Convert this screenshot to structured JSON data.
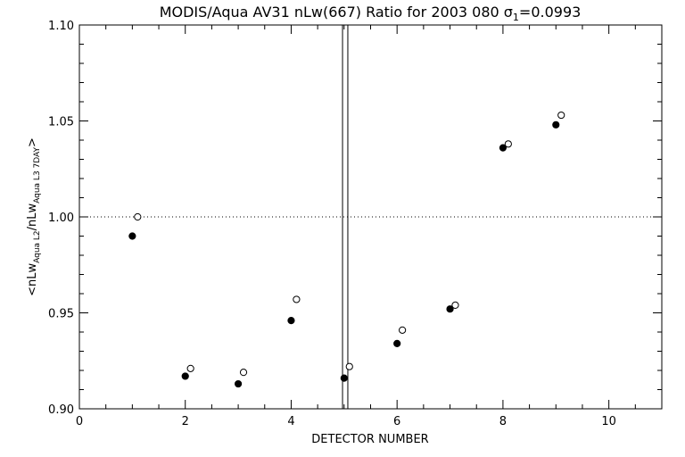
{
  "chart_data": {
    "type": "scatter",
    "title_main": "MODIS/Aqua AV31 nLw(667) Ratio for 2003 080 ",
    "title_sigma": "σ",
    "title_sigma_sub": "1",
    "title_value": "=0.0993",
    "xlabel": "DETECTOR NUMBER",
    "ylabel_parts": {
      "open": "<nLw",
      "sub1": "Aqua L2",
      "slash": "/nLw",
      "sub2": "Aqua L3 7DAY",
      "close": ">"
    },
    "xlim": [
      0,
      11
    ],
    "ylim": [
      0.9,
      1.1
    ],
    "xticks": [
      0,
      2,
      4,
      6,
      8,
      10
    ],
    "xtick_labels": [
      "0",
      "2",
      "4",
      "6",
      "8",
      "10"
    ],
    "yticks": [
      0.9,
      0.95,
      1.0,
      1.05,
      1.1
    ],
    "ytick_labels": [
      "0.90",
      "0.95",
      "1.00",
      "1.05",
      "1.10"
    ],
    "reference_line_y": 1.0,
    "vertical_lines_x": [
      4.97,
      5.07
    ],
    "series": [
      {
        "marker": "filled-circle",
        "x": [
          1,
          2,
          3,
          4,
          5,
          6,
          7,
          8,
          9
        ],
        "y": [
          0.99,
          0.917,
          0.913,
          0.946,
          0.916,
          0.934,
          0.952,
          1.036,
          1.048
        ]
      },
      {
        "marker": "open-circle",
        "x": [
          1.1,
          2.1,
          3.1,
          4.1,
          5.1,
          6.1,
          7.1,
          8.1,
          9.1
        ],
        "y": [
          1.0,
          0.921,
          0.919,
          0.957,
          0.922,
          0.941,
          0.954,
          1.038,
          1.053
        ]
      }
    ]
  }
}
